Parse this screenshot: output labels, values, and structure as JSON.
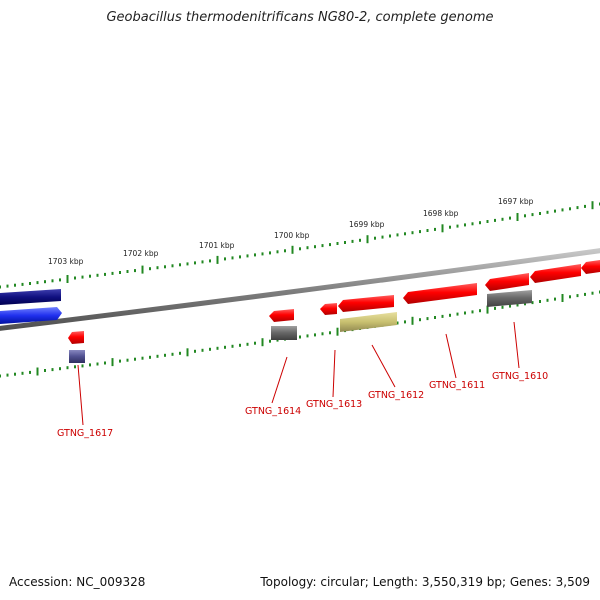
{
  "title": "Geobacillus thermodenitrificans NG80-2, complete genome",
  "footer": {
    "accession": "Accession: NC_009328",
    "topology": "Topology: circular; Length: 3,550,319 bp; Genes: 3,509"
  },
  "scale_labels": [
    "1703 kbp",
    "1702 kbp",
    "1701 kbp",
    "1700 kbp",
    "1699 kbp",
    "1698 kbp",
    "1697 kbp"
  ],
  "gene_labels": [
    "GTNG_1617",
    "GTNG_1614",
    "GTNG_1613",
    "GTNG_1612",
    "GTNG_1611",
    "GTNG_1610"
  ],
  "colors": {
    "forward_gene": "#ff0000",
    "backbone": "#888888",
    "scale_ticks": "#228822",
    "label_text": "#cc0000",
    "other_gene": "#777777",
    "rna_gene": "#c8c070",
    "dark_blue_gene": "#101080",
    "blue_gene": "#2030ee",
    "purple_gene": "#505090"
  }
}
